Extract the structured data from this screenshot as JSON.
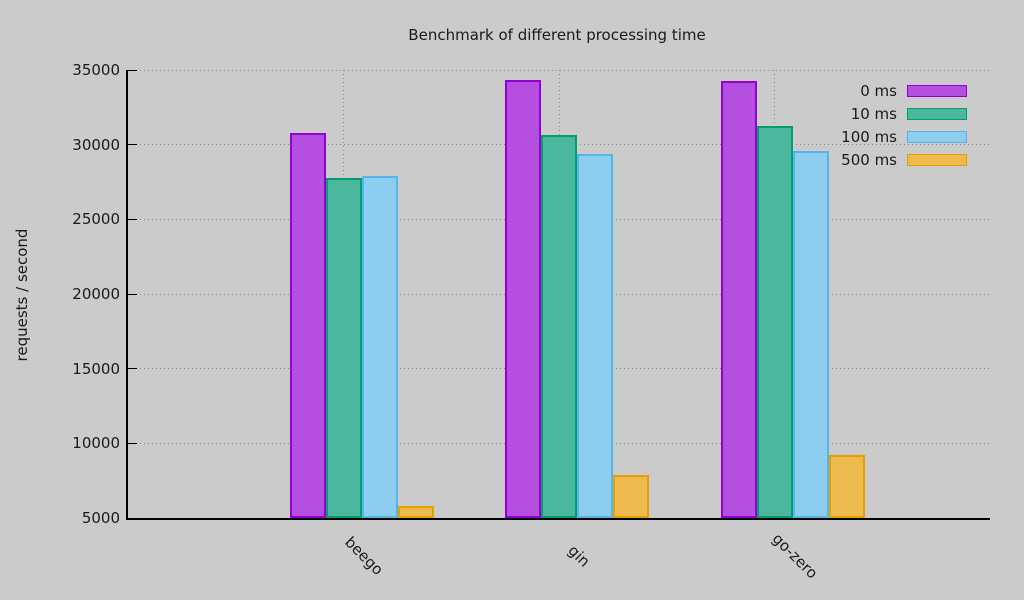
{
  "chart_data": {
    "type": "bar",
    "title": "Benchmark of different processing time",
    "xlabel": "",
    "ylabel": "requests / second",
    "categories": [
      "beego",
      "gin",
      "go-zero"
    ],
    "series": [
      {
        "name": "0 ms",
        "fill": "#b44fe0",
        "border": "#9400d3",
        "values": [
          30750,
          34300,
          34250
        ]
      },
      {
        "name": "10 ms",
        "fill": "#4bb79c",
        "border": "#009e73",
        "values": [
          27750,
          30650,
          31250
        ]
      },
      {
        "name": "100 ms",
        "fill": "#8ccdf0",
        "border": "#56b4e9",
        "values": [
          27900,
          29400,
          29600
        ]
      },
      {
        "name": "500 ms",
        "fill": "#ecba4e",
        "border": "#e69f00",
        "values": [
          5800,
          7900,
          9200
        ]
      }
    ],
    "ylim": [
      5000,
      35000
    ],
    "yticks": [
      5000,
      10000,
      15000,
      20000,
      25000,
      30000,
      35000
    ],
    "grid": true,
    "legend_position": "top-right",
    "background_color": "#cbcbcb",
    "axis_color": "#000000"
  }
}
